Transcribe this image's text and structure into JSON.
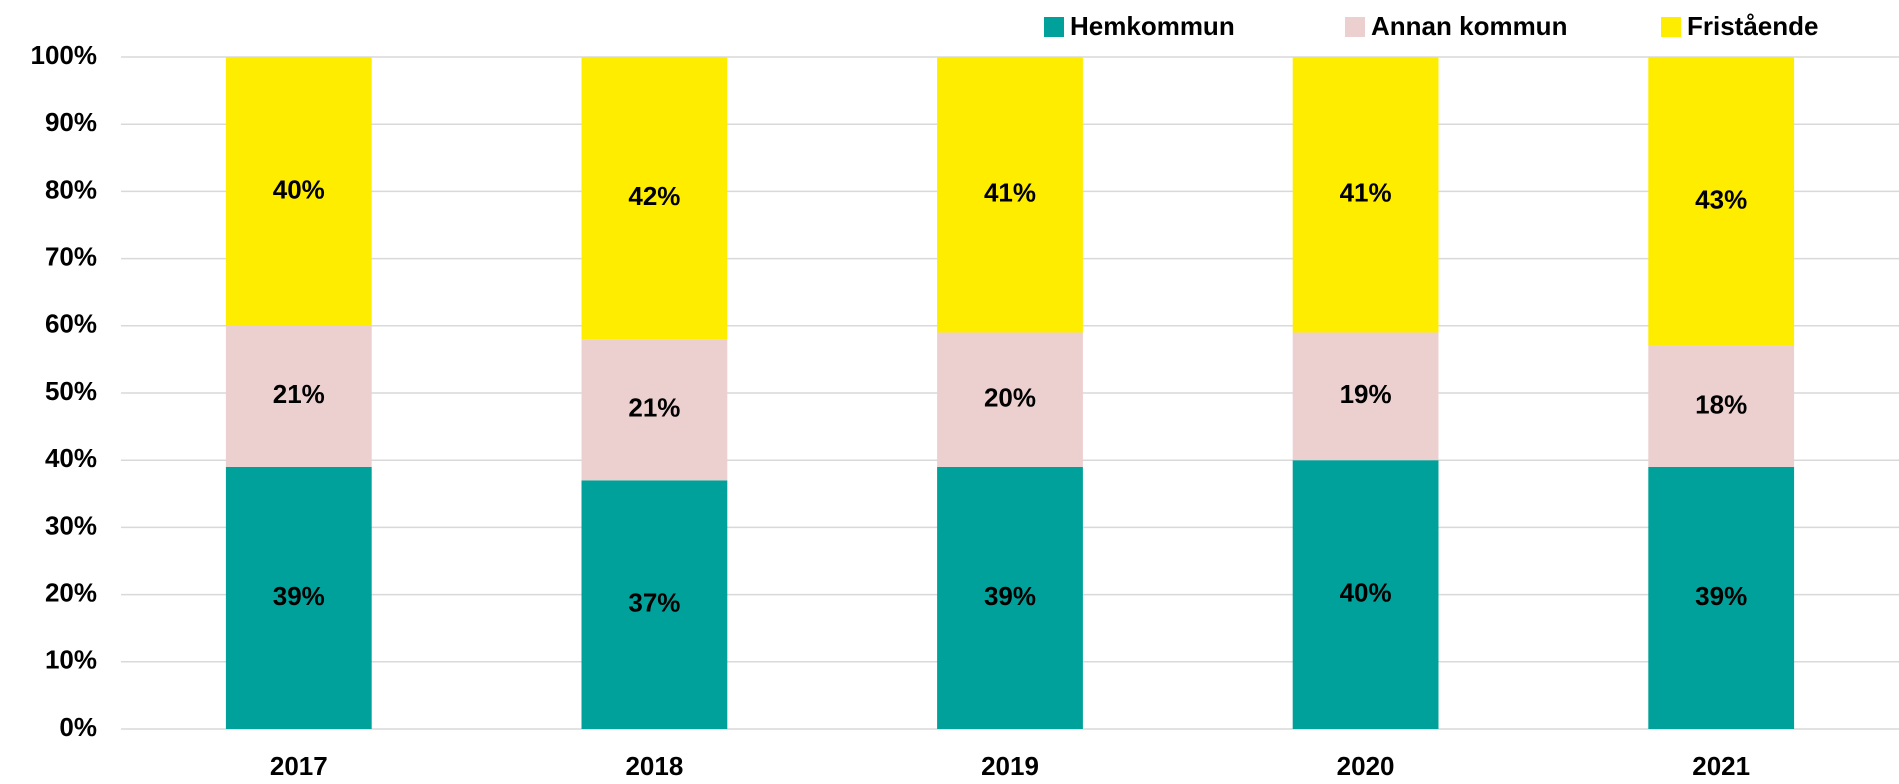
{
  "chart_data": {
    "type": "stacked_bar",
    "categories": [
      "2017",
      "2018",
      "2019",
      "2020",
      "2021"
    ],
    "series": [
      {
        "name": "Hemkommun",
        "color": "#00a19a",
        "values": [
          39,
          37,
          39,
          40,
          39
        ],
        "value_labels": [
          "39%",
          "37%",
          "39%",
          "40%",
          "39%"
        ]
      },
      {
        "name": "Annan kommun",
        "color": "#ecd0d0",
        "values": [
          21,
          21,
          20,
          19,
          18
        ],
        "value_labels": [
          "21%",
          "21%",
          "20%",
          "19%",
          "18%"
        ]
      },
      {
        "name": "Fristående",
        "color": "#ffed00",
        "values": [
          40,
          42,
          41,
          41,
          43
        ],
        "value_labels": [
          "40%",
          "42%",
          "41%",
          "41%",
          "43%"
        ]
      }
    ],
    "ylim": [
      0,
      100
    ],
    "yticks": [
      {
        "value": 0,
        "label": "0%"
      },
      {
        "value": 10,
        "label": "10%"
      },
      {
        "value": 20,
        "label": "20%"
      },
      {
        "value": 30,
        "label": "30%"
      },
      {
        "value": 40,
        "label": "40%"
      },
      {
        "value": 50,
        "label": "50%"
      },
      {
        "value": 60,
        "label": "60%"
      },
      {
        "value": 70,
        "label": "70%"
      },
      {
        "value": 80,
        "label": "80%"
      },
      {
        "value": 90,
        "label": "90%"
      },
      {
        "value": 100,
        "label": "100%"
      }
    ],
    "grid": true,
    "legend": "top-right"
  }
}
